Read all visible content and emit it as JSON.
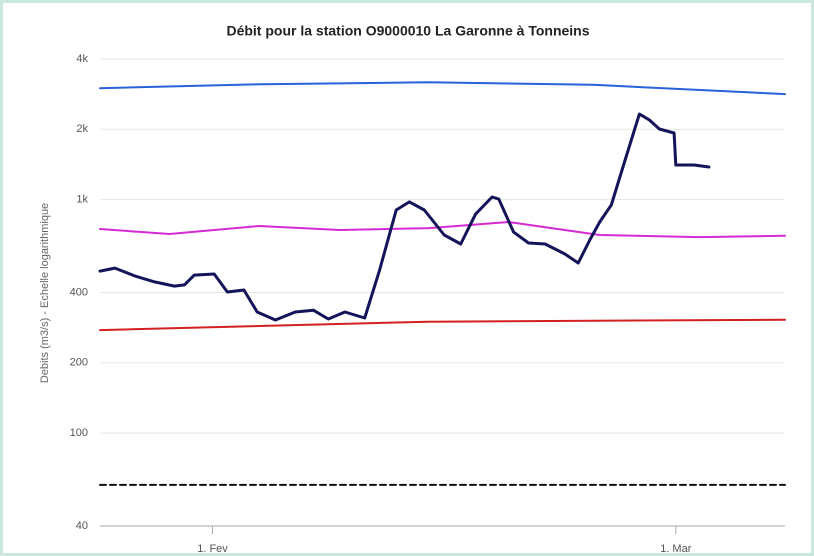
{
  "chart_data": {
    "type": "line",
    "title": "Débit pour la station O9000010 La Garonne à Tonneins",
    "y_label": "Debits (m3/s) - Echelle logarithmique",
    "log_y": true,
    "grid": true,
    "ylim": [
      40,
      4000
    ],
    "yticks": [
      40,
      100,
      200,
      400,
      {
        "value": 1000,
        "label": "1k"
      },
      {
        "value": 2000,
        "label": "2k"
      },
      {
        "value": 4000,
        "label": "4k"
      }
    ],
    "xlim": [
      25.2,
      66.6
    ],
    "xticks": [
      {
        "value": 32,
        "label": "1. Fev"
      },
      {
        "value": 60,
        "label": "1. Mar"
      }
    ],
    "series": [
      {
        "color": "#2962d9",
        "x": [
          25.2,
          35,
          45,
          55,
          66.6
        ],
        "values": [
          3000,
          3120,
          3180,
          3100,
          2830
        ]
      },
      {
        "color": "#d629d6",
        "x": [
          25.2,
          29.4,
          34.8,
          39.7,
          45.1,
          49.9,
          55.4,
          61.4,
          66.6
        ],
        "values": [
          748,
          712,
          771,
          741,
          755,
          802,
          705,
          691,
          700
        ]
      },
      {
        "color": "#d42020",
        "x": [
          25.2,
          45,
          66.6
        ],
        "values": [
          276,
          300,
          306
        ]
      },
      {
        "color": "#111111",
        "dashed": true,
        "x": [
          25.2,
          66.6
        ],
        "values": [
          60,
          60
        ]
      },
      {
        "color": "#14145a",
        "width": 3,
        "x": [
          25.2,
          26.1,
          27.3,
          28.5,
          29.7,
          30.3,
          30.9,
          32.1,
          32.9,
          33.9,
          34.7,
          35.8,
          37.0,
          38.1,
          39.0,
          40.0,
          41.2,
          42.1,
          43.1,
          43.9,
          44.8,
          46.0,
          47.0,
          47.9,
          48.9,
          49.3,
          50.2,
          51.1,
          52.1,
          53.3,
          54.1,
          54.8,
          55.4,
          56.1,
          56.9,
          57.8,
          58.4,
          59.0,
          59.9,
          60.0,
          61.1,
          62.0
        ],
        "values": [
          494,
          509,
          471,
          444,
          426,
          431,
          475,
          480,
          402,
          410,
          330,
          305,
          330,
          336,
          308,
          330,
          311,
          499,
          902,
          977,
          902,
          705,
          645,
          867,
          1026,
          1005,
          726,
          652,
          645,
          585,
          535,
          671,
          802,
          948,
          1449,
          2325,
          2193,
          2005,
          1928,
          1407,
          1407,
          1379
        ]
      }
    ]
  }
}
